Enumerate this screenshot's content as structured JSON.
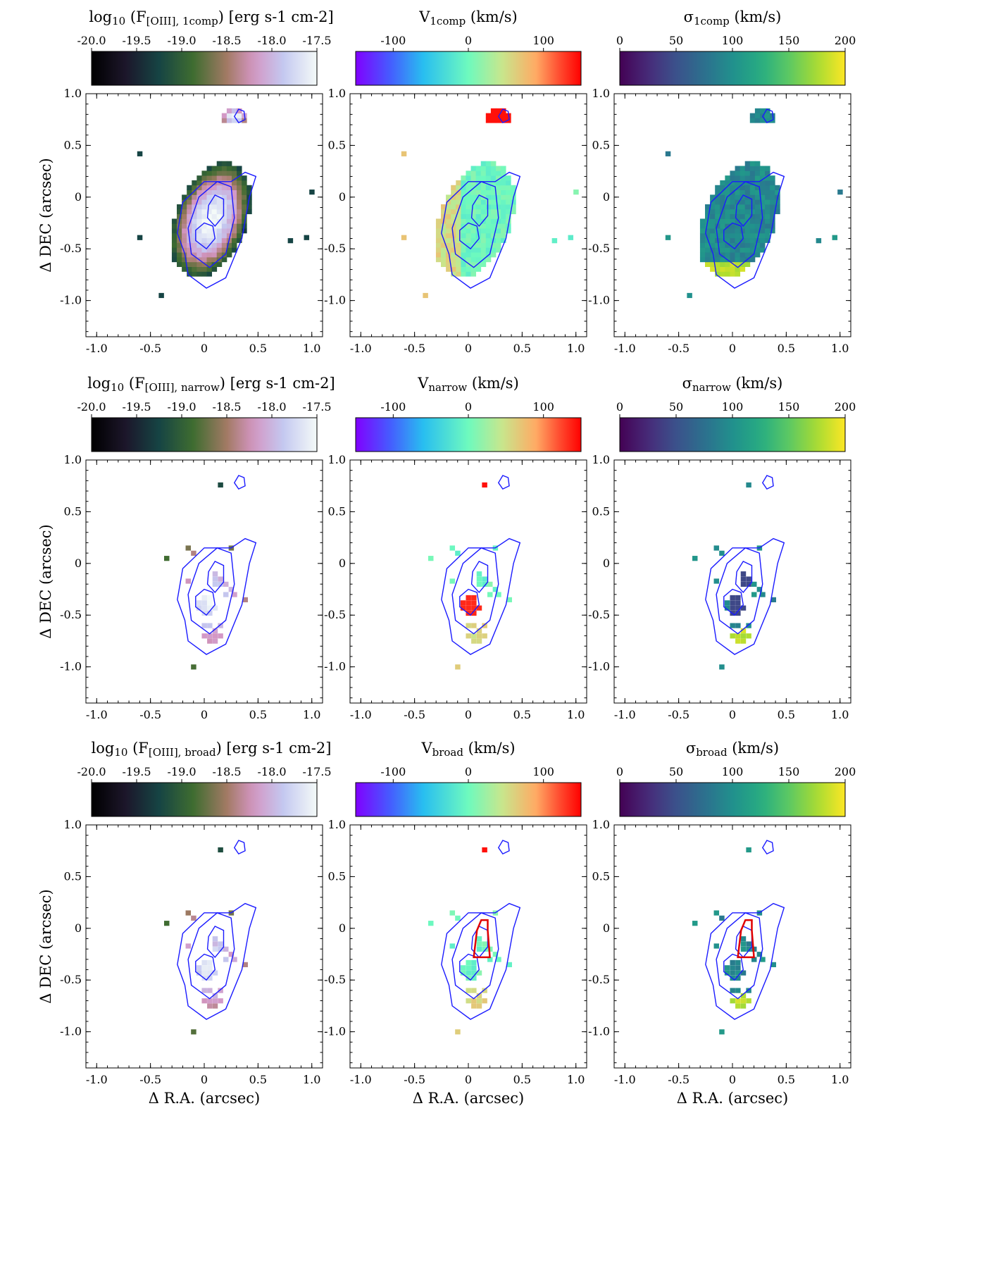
{
  "chart_data": [
    {
      "type": "heatmap",
      "panel": "1comp-flux",
      "title": {
        "main": "log",
        "sub1": "10",
        "mid": " (F",
        "sub2": "[OIII], 1comp",
        "tail": ") [erg s-1 cm-2]"
      },
      "colorbar": {
        "cmap": "cubehelix",
        "range": [
          -20.0,
          -17.5
        ],
        "ticks": [
          "-20.0",
          "-19.5",
          "-19.0",
          "-18.5",
          "-18.0",
          "-17.5"
        ],
        "tick_values": [
          -20.0,
          -19.5,
          -19.0,
          -18.5,
          -18.0,
          -17.5
        ]
      },
      "xlabel": "",
      "ylabel": "Δ DEC (arcsec)",
      "xlim": [
        -1.1,
        1.1
      ],
      "ylim": [
        -1.35,
        1.0
      ],
      "xticks": [
        "-1.0",
        "-0.5",
        "0",
        "0.5",
        "1.0"
      ],
      "yticks": [
        "1.0",
        "0.5",
        "0",
        "-0.5",
        "-1.0"
      ],
      "map": "full",
      "quantity": "flux",
      "highlight": false
    },
    {
      "type": "heatmap",
      "panel": "1comp-velocity",
      "title": {
        "main": "V",
        "sub1": "1comp",
        "mid": "",
        "sub2": "",
        "tail": " (km/s)"
      },
      "colorbar": {
        "cmap": "rainbow",
        "range": [
          -150,
          150
        ],
        "ticks": [
          "-100",
          "0",
          "100"
        ],
        "tick_values": [
          -100,
          0,
          100
        ]
      },
      "xlabel": "",
      "ylabel": "",
      "xlim": [
        -1.1,
        1.1
      ],
      "ylim": [
        -1.35,
        1.0
      ],
      "xticks": [
        "-1.0",
        "-0.5",
        "0",
        "0.5",
        "1.0"
      ],
      "yticks": [
        "1.0",
        "0.5",
        "0",
        "-0.5",
        "-1.0"
      ],
      "map": "full",
      "quantity": "velocity",
      "highlight": false
    },
    {
      "type": "heatmap",
      "panel": "1comp-dispersion",
      "title": {
        "main": "σ",
        "sub1": "1comp",
        "mid": "",
        "sub2": "",
        "tail": " (km/s)"
      },
      "colorbar": {
        "cmap": "viridis",
        "range": [
          0,
          200
        ],
        "ticks": [
          "0",
          "50",
          "100",
          "150",
          "200"
        ],
        "tick_values": [
          0,
          50,
          100,
          150,
          200
        ]
      },
      "xlabel": "",
      "ylabel": "",
      "xlim": [
        -1.1,
        1.1
      ],
      "ylim": [
        -1.35,
        1.0
      ],
      "xticks": [
        "-1.0",
        "-0.5",
        "0",
        "0.5",
        "1.0"
      ],
      "yticks": [
        "1.0",
        "0.5",
        "0",
        "-0.5",
        "-1.0"
      ],
      "map": "full",
      "quantity": "sigma",
      "highlight": false
    },
    {
      "type": "heatmap",
      "panel": "narrow-flux",
      "title": {
        "main": "log",
        "sub1": "10",
        "mid": " (F",
        "sub2": "[OIII], narrow",
        "tail": ") [erg s-1 cm-2]"
      },
      "colorbar": {
        "cmap": "cubehelix",
        "range": [
          -20.0,
          -17.5
        ],
        "ticks": [
          "-20.0",
          "-19.5",
          "-19.0",
          "-18.5",
          "-18.0",
          "-17.5"
        ],
        "tick_values": [
          -20.0,
          -19.5,
          -19.0,
          -18.5,
          -18.0,
          -17.5
        ]
      },
      "xlabel": "",
      "ylabel": "Δ DEC (arcsec)",
      "xlim": [
        -1.1,
        1.1
      ],
      "ylim": [
        -1.35,
        1.0
      ],
      "xticks": [
        "-1.0",
        "-0.5",
        "0",
        "0.5",
        "1.0"
      ],
      "yticks": [
        "1.0",
        "0.5",
        "0",
        "-0.5",
        "-1.0"
      ],
      "map": "sparse",
      "quantity": "flux",
      "highlight": false
    },
    {
      "type": "heatmap",
      "panel": "narrow-velocity",
      "title": {
        "main": "V",
        "sub1": "narrow",
        "mid": "",
        "sub2": "",
        "tail": " (km/s)"
      },
      "colorbar": {
        "cmap": "rainbow",
        "range": [
          -150,
          150
        ],
        "ticks": [
          "-100",
          "0",
          "100"
        ],
        "tick_values": [
          -100,
          0,
          100
        ]
      },
      "xlabel": "",
      "ylabel": "",
      "xlim": [
        -1.1,
        1.1
      ],
      "ylim": [
        -1.35,
        1.0
      ],
      "xticks": [
        "-1.0",
        "-0.5",
        "0",
        "0.5",
        "1.0"
      ],
      "yticks": [
        "1.0",
        "0.5",
        "0",
        "-0.5",
        "-1.0"
      ],
      "map": "sparse",
      "quantity": "velocity",
      "highlight": false
    },
    {
      "type": "heatmap",
      "panel": "narrow-dispersion",
      "title": {
        "main": "σ",
        "sub1": "narrow",
        "mid": "",
        "sub2": "",
        "tail": " (km/s)"
      },
      "colorbar": {
        "cmap": "viridis",
        "range": [
          0,
          200
        ],
        "ticks": [
          "0",
          "50",
          "100",
          "150",
          "200"
        ],
        "tick_values": [
          0,
          50,
          100,
          150,
          200
        ]
      },
      "xlabel": "",
      "ylabel": "",
      "xlim": [
        -1.1,
        1.1
      ],
      "ylim": [
        -1.35,
        1.0
      ],
      "xticks": [
        "-1.0",
        "-0.5",
        "0",
        "0.5",
        "1.0"
      ],
      "yticks": [
        "1.0",
        "0.5",
        "0",
        "-0.5",
        "-1.0"
      ],
      "map": "sparse",
      "quantity": "sigma",
      "highlight": false
    },
    {
      "type": "heatmap",
      "panel": "broad-flux",
      "title": {
        "main": "log",
        "sub1": "10",
        "mid": " (F",
        "sub2": "[OIII], broad",
        "tail": ") [erg s-1 cm-2]"
      },
      "colorbar": {
        "cmap": "cubehelix",
        "range": [
          -20.0,
          -17.5
        ],
        "ticks": [
          "-20.0",
          "-19.5",
          "-19.0",
          "-18.5",
          "-18.0",
          "-17.5"
        ],
        "tick_values": [
          -20.0,
          -19.5,
          -19.0,
          -18.5,
          -18.0,
          -17.5
        ]
      },
      "xlabel": "Δ R.A. (arcsec)",
      "ylabel": "Δ DEC (arcsec)",
      "xlim": [
        -1.1,
        1.1
      ],
      "ylim": [
        -1.35,
        1.0
      ],
      "xticks": [
        "-1.0",
        "-0.5",
        "0",
        "0.5",
        "1.0"
      ],
      "yticks": [
        "1.0",
        "0.5",
        "0",
        "-0.5",
        "-1.0"
      ],
      "map": "sparse",
      "quantity": "flux",
      "highlight": false
    },
    {
      "type": "heatmap",
      "panel": "broad-velocity",
      "title": {
        "main": "V",
        "sub1": "broad",
        "mid": "",
        "sub2": "",
        "tail": " (km/s)"
      },
      "colorbar": {
        "cmap": "rainbow",
        "range": [
          -150,
          150
        ],
        "ticks": [
          "-100",
          "0",
          "100"
        ],
        "tick_values": [
          -100,
          0,
          100
        ]
      },
      "xlabel": "Δ R.A. (arcsec)",
      "ylabel": "",
      "xlim": [
        -1.1,
        1.1
      ],
      "ylim": [
        -1.35,
        1.0
      ],
      "xticks": [
        "-1.0",
        "-0.5",
        "0",
        "0.5",
        "1.0"
      ],
      "yticks": [
        "1.0",
        "0.5",
        "0",
        "-0.5",
        "-1.0"
      ],
      "map": "sparse",
      "quantity": "velocity",
      "highlight": true
    },
    {
      "type": "heatmap",
      "panel": "broad-dispersion",
      "title": {
        "main": "σ",
        "sub1": "broad",
        "mid": "",
        "sub2": "",
        "tail": " (km/s)"
      },
      "colorbar": {
        "cmap": "viridis",
        "range": [
          0,
          200
        ],
        "ticks": [
          "0",
          "50",
          "100",
          "150",
          "200"
        ],
        "tick_values": [
          0,
          50,
          100,
          150,
          200
        ]
      },
      "xlabel": "Δ R.A. (arcsec)",
      "ylabel": "",
      "xlim": [
        -1.1,
        1.1
      ],
      "ylim": [
        -1.35,
        1.0
      ],
      "xticks": [
        "-1.0",
        "-0.5",
        "0",
        "0.5",
        "1.0"
      ],
      "yticks": [
        "1.0",
        "0.5",
        "0",
        "-0.5",
        "-1.0"
      ],
      "map": "sparse",
      "quantity": "sigma",
      "highlight": true
    }
  ],
  "contours": {
    "color": "#1a1aff",
    "outer": [
      [
        -0.18,
        -0.55
      ],
      [
        -0.15,
        -0.75
      ],
      [
        0.02,
        -0.88
      ],
      [
        0.2,
        -0.78
      ],
      [
        0.35,
        -0.4
      ],
      [
        0.42,
        0.0
      ],
      [
        0.48,
        0.2
      ],
      [
        0.38,
        0.24
      ],
      [
        0.25,
        0.15
      ],
      [
        0.0,
        0.15
      ],
      [
        -0.2,
        -0.05
      ],
      [
        -0.25,
        -0.35
      ]
    ],
    "middle": [
      [
        -0.12,
        -0.55
      ],
      [
        0.05,
        -0.68
      ],
      [
        0.2,
        -0.55
      ],
      [
        0.28,
        -0.2
      ],
      [
        0.25,
        0.1
      ],
      [
        0.12,
        0.15
      ],
      [
        -0.05,
        0.0
      ],
      [
        -0.15,
        -0.3
      ]
    ],
    "upper_core": [
      [
        0.03,
        -0.2
      ],
      [
        0.1,
        -0.28
      ],
      [
        0.18,
        -0.18
      ],
      [
        0.18,
        -0.02
      ],
      [
        0.1,
        0.02
      ],
      [
        0.04,
        -0.08
      ]
    ],
    "lower_core": [
      [
        -0.08,
        -0.42
      ],
      [
        0.02,
        -0.5
      ],
      [
        0.1,
        -0.4
      ],
      [
        0.08,
        -0.28
      ],
      [
        0.0,
        -0.25
      ],
      [
        -0.08,
        -0.32
      ]
    ],
    "blob": [
      [
        0.28,
        0.78
      ],
      [
        0.32,
        0.72
      ],
      [
        0.38,
        0.75
      ],
      [
        0.37,
        0.83
      ],
      [
        0.32,
        0.85
      ]
    ],
    "red_region": [
      [
        0.05,
        -0.28
      ],
      [
        0.08,
        -0.02
      ],
      [
        0.12,
        0.08
      ],
      [
        0.18,
        0.08
      ],
      [
        0.18,
        -0.02
      ],
      [
        0.2,
        -0.28
      ]
    ]
  }
}
